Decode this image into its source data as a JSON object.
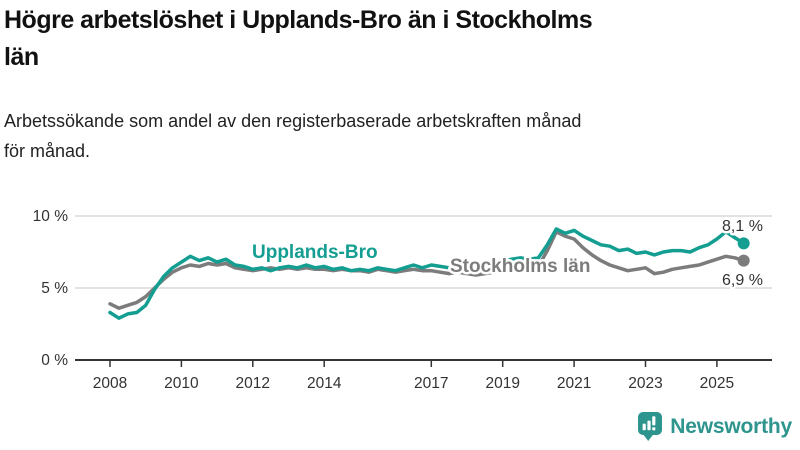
{
  "header": {
    "title_lines": [
      "Högre arbetslöshet i Upplands-Bro än i Stockholms",
      "län"
    ],
    "subtitle_lines": [
      "Arbetssökande som andel av den registerbaserade arbetskraften månad",
      "för månad."
    ]
  },
  "chart_data": {
    "type": "line",
    "title": "Högre arbetslöshet i Upplands-Bro än i Stockholms län",
    "subtitle": "Arbetssökande som andel av den registerbaserade arbetskraften månad för månad.",
    "grid": "horizontal",
    "legend_position": "inline-labels",
    "x_axis": {
      "unit": "year",
      "range": [
        2007.9,
        2026.4
      ],
      "ticks": [
        2008,
        2010,
        2012,
        2014,
        2017,
        2019,
        2021,
        2023,
        2025
      ]
    },
    "y_axis": {
      "unit": "%",
      "range": [
        0,
        10.5
      ],
      "ticks": [
        {
          "value": 0,
          "label": "0 %"
        },
        {
          "value": 5,
          "label": "5 %"
        },
        {
          "value": 10,
          "label": "10 %"
        }
      ]
    },
    "series": [
      {
        "name": "Upplands-Bro",
        "color": "#149e91",
        "end_label": "8,1 %",
        "x_start": 2008.0,
        "x_step": 0.25,
        "values": [
          3.3,
          2.9,
          3.2,
          3.3,
          3.8,
          4.9,
          5.8,
          6.4,
          6.8,
          7.2,
          6.9,
          7.1,
          6.8,
          7.0,
          6.6,
          6.5,
          6.3,
          6.4,
          6.2,
          6.4,
          6.5,
          6.4,
          6.6,
          6.4,
          6.5,
          6.3,
          6.4,
          6.2,
          6.3,
          6.2,
          6.4,
          6.3,
          6.2,
          6.4,
          6.6,
          6.4,
          6.6,
          6.5,
          6.4,
          6.3,
          6.4,
          6.3,
          6.5,
          6.6,
          6.8,
          7.0,
          7.1,
          7.0,
          7.1,
          8.0,
          9.1,
          8.8,
          9.0,
          8.6,
          8.3,
          8.0,
          7.9,
          7.6,
          7.7,
          7.4,
          7.5,
          7.3,
          7.5,
          7.6,
          7.6,
          7.5,
          7.8,
          8.0,
          8.4,
          8.9,
          8.5,
          8.1
        ]
      },
      {
        "name": "Stockholms län",
        "color": "#7c7c7c",
        "end_label": "6,9 %",
        "x_start": 2008.0,
        "x_step": 0.25,
        "values": [
          3.9,
          3.6,
          3.8,
          4.0,
          4.4,
          5.0,
          5.6,
          6.1,
          6.4,
          6.6,
          6.5,
          6.7,
          6.6,
          6.7,
          6.4,
          6.3,
          6.2,
          6.3,
          6.4,
          6.3,
          6.4,
          6.3,
          6.4,
          6.3,
          6.3,
          6.2,
          6.3,
          6.2,
          6.2,
          6.1,
          6.3,
          6.2,
          6.1,
          6.2,
          6.3,
          6.2,
          6.2,
          6.1,
          6.0,
          6.1,
          6.0,
          5.9,
          6.0,
          6.1,
          6.2,
          6.3,
          6.4,
          6.3,
          6.5,
          7.6,
          8.9,
          8.6,
          8.4,
          7.8,
          7.3,
          6.9,
          6.6,
          6.4,
          6.2,
          6.3,
          6.4,
          6.0,
          6.1,
          6.3,
          6.4,
          6.5,
          6.6,
          6.8,
          7.0,
          7.2,
          7.1,
          6.9
        ]
      }
    ]
  },
  "footer": {
    "brand": "Newsworthy",
    "brand_color": "#2e948e",
    "logo_icon": "bar-chart-speech-bubble-icon"
  }
}
